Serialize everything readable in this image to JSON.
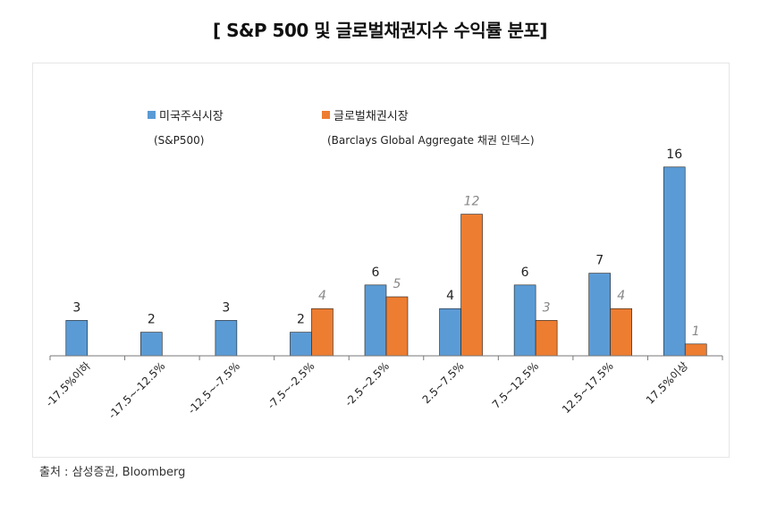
{
  "title": "[ S&P 500 및 글로벌채권지수 수익률 분포]",
  "source": "출처 : 삼성증권, Bloomberg",
  "colors": {
    "series_a": "#5b9bd5",
    "series_b": "#ed7d31",
    "axis": "#777777"
  },
  "legend": [
    {
      "label": "미국주식시장",
      "sub": "(S&P500)"
    },
    {
      "label": "글로벌채권시장",
      "sub": "(Barclays Global Aggregate 채권 인덱스)"
    }
  ],
  "chart_data": {
    "type": "bar",
    "title": "[ S&P 500 및 글로벌채권지수 수익률 분포]",
    "categories": [
      "-17.5%이하",
      "-17.5~-12.5%",
      "-12.5~-7.5%",
      "-7.5~-2.5%",
      "-2.5~2.5%",
      "2.5~7.5%",
      "7.5~12.5%",
      "12.5~17.5%",
      "17.5%이상"
    ],
    "series": [
      {
        "name": "미국주식시장 (S&P500)",
        "values": [
          3,
          2,
          3,
          2,
          6,
          4,
          6,
          7,
          16
        ],
        "labels": [
          "3",
          "2",
          "3",
          "2",
          "6",
          "4",
          "6",
          "7",
          "16"
        ]
      },
      {
        "name": "글로벌채권시장 (Barclays Global Aggregate 채권 인덱스)",
        "values": [
          0,
          0,
          0,
          4,
          5,
          12,
          3,
          4,
          1
        ],
        "labels": [
          "",
          "",
          "",
          "4",
          "5",
          "12",
          "3",
          "4",
          "1"
        ]
      }
    ],
    "ylim": [
      0,
      16
    ],
    "xlabel": "",
    "ylabel": "",
    "grid": false,
    "legend_position": "top-left"
  }
}
